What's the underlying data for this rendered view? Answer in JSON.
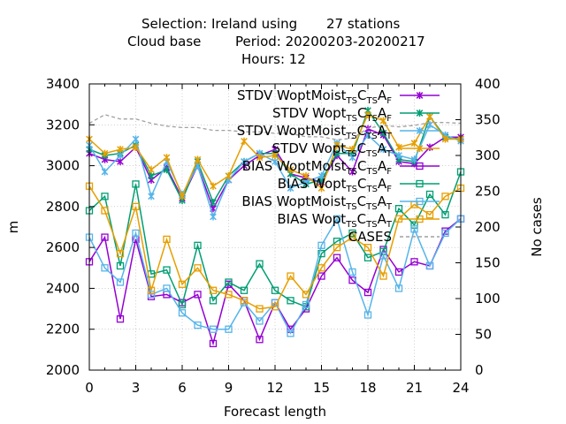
{
  "chart_data": {
    "type": "line",
    "title": {
      "line1_a": "Selection: Ireland using",
      "line1_b": "27 stations",
      "line2_a": "Cloud base",
      "line2_b": "Period: 20200203-20200217",
      "line3": "Hours:  12"
    },
    "xlabel": "Forecast length",
    "ylabel": "m",
    "y2label": "No cases",
    "xlim": [
      0,
      24
    ],
    "ylim": [
      2000,
      3400
    ],
    "y2lim": [
      0,
      400
    ],
    "xticks": [
      "0",
      "3",
      "6",
      "9",
      "12",
      "15",
      "18",
      "21",
      "24"
    ],
    "yticks": [
      "2000",
      "2200",
      "2400",
      "2600",
      "2800",
      "3000",
      "3200",
      "3400"
    ],
    "y2ticks": [
      "0",
      "50",
      "100",
      "150",
      "200",
      "250",
      "300",
      "350",
      "400"
    ],
    "grid": true,
    "legend_position": "top-right",
    "x": [
      0,
      1,
      2,
      3,
      4,
      5,
      6,
      7,
      8,
      9,
      10,
      11,
      12,
      13,
      14,
      15,
      16,
      17,
      18,
      19,
      20,
      21,
      22,
      23,
      24
    ],
    "series": [
      {
        "name_parts": [
          [
            "STDV WoptMoist",
            ""
          ],
          [
            "TS",
            "sub"
          ],
          [
            "C",
            ""
          ],
          [
            "TS",
            "sub"
          ],
          [
            "A",
            ""
          ],
          [
            "F",
            "sub"
          ]
        ],
        "color": "#9400d3",
        "marker": "x-star",
        "dash": "",
        "axis": "y1",
        "values": [
          3060,
          3030,
          3020,
          3090,
          2930,
          2990,
          2840,
          3000,
          2790,
          2930,
          3000,
          3050,
          3080,
          2960,
          2940,
          2920,
          3050,
          2970,
          3180,
          3150,
          3020,
          3010,
          3090,
          3140,
          3140
        ]
      },
      {
        "name_parts": [
          [
            "STDV Wopt",
            ""
          ],
          [
            "TS",
            "sub"
          ],
          [
            "C",
            ""
          ],
          [
            "TS",
            "sub"
          ],
          [
            "A",
            ""
          ],
          [
            "F",
            "sub"
          ]
        ],
        "color": "#009e73",
        "marker": "x-star",
        "dash": "",
        "axis": "y1",
        "values": [
          3080,
          3050,
          3060,
          3100,
          2950,
          2980,
          2830,
          3020,
          2820,
          2950,
          3020,
          3060,
          3060,
          2960,
          2910,
          2930,
          3060,
          3060,
          3270,
          3160,
          3030,
          3020,
          3240,
          3140,
          3130
        ]
      },
      {
        "name_parts": [
          [
            "STDV WoptMoist",
            ""
          ],
          [
            "TS",
            "sub"
          ],
          [
            "C",
            ""
          ],
          [
            "TS",
            "sub"
          ],
          [
            "A",
            ""
          ],
          [
            "T",
            "sub"
          ]
        ],
        "color": "#56b4e9",
        "marker": "x-star",
        "dash": "",
        "axis": "y1",
        "values": [
          3100,
          2970,
          3050,
          3130,
          2850,
          3020,
          2860,
          3000,
          2750,
          2930,
          3020,
          3060,
          3020,
          2890,
          2920,
          2950,
          3110,
          3040,
          3150,
          3080,
          3050,
          3030,
          3200,
          3150,
          3120
        ]
      },
      {
        "name_parts": [
          [
            "STDV Wopt",
            ""
          ],
          [
            "TS",
            "sub"
          ],
          [
            "C",
            ""
          ],
          [
            "TS",
            "sub"
          ],
          [
            "A",
            ""
          ],
          [
            "T",
            "sub"
          ]
        ],
        "color": "#e69f00",
        "marker": "x-star",
        "dash": "",
        "axis": "y1",
        "values": [
          3130,
          3060,
          3080,
          3090,
          2980,
          3040,
          2850,
          3030,
          2900,
          2950,
          3120,
          3040,
          3050,
          2980,
          2950,
          2890,
          3100,
          3080,
          3250,
          3220,
          3090,
          3110,
          3240,
          3130,
          3130
        ]
      },
      {
        "name_parts": [
          [
            "BIAS WoptMoist",
            ""
          ],
          [
            "TS",
            "sub"
          ],
          [
            "C",
            ""
          ],
          [
            "TS",
            "sub"
          ],
          [
            "A",
            ""
          ],
          [
            "F",
            "sub"
          ]
        ],
        "color": "#9400d3",
        "marker": "square",
        "dash": "",
        "axis": "y1",
        "values": [
          2530,
          2650,
          2250,
          2640,
          2360,
          2370,
          2330,
          2370,
          2130,
          2420,
          2340,
          2150,
          2330,
          2200,
          2300,
          2460,
          2550,
          2440,
          2380,
          2590,
          2480,
          2530,
          2510,
          2680,
          2740
        ]
      },
      {
        "name_parts": [
          [
            "BIAS Wopt",
            ""
          ],
          [
            "TS",
            "sub"
          ],
          [
            "C",
            ""
          ],
          [
            "TS",
            "sub"
          ],
          [
            "A",
            ""
          ],
          [
            "F",
            "sub"
          ]
        ],
        "color": "#009e73",
        "marker": "square",
        "dash": "",
        "axis": "y1",
        "values": [
          2780,
          2850,
          2510,
          2910,
          2470,
          2490,
          2320,
          2610,
          2340,
          2430,
          2390,
          2520,
          2390,
          2340,
          2310,
          2570,
          2630,
          2670,
          2550,
          2580,
          2790,
          2710,
          2860,
          2760,
          2970
        ]
      },
      {
        "name_parts": [
          [
            "BIAS WoptMoist",
            ""
          ],
          [
            "TS",
            "sub"
          ],
          [
            "C",
            ""
          ],
          [
            "TS",
            "sub"
          ],
          [
            "A",
            ""
          ],
          [
            "T",
            "sub"
          ]
        ],
        "color": "#56b4e9",
        "marker": "square",
        "dash": "",
        "axis": "y1",
        "values": [
          2650,
          2500,
          2430,
          2670,
          2370,
          2400,
          2280,
          2220,
          2200,
          2200,
          2330,
          2240,
          2330,
          2180,
          2320,
          2610,
          2740,
          2480,
          2270,
          2560,
          2400,
          2690,
          2510,
          2670,
          2740
        ]
      },
      {
        "name_parts": [
          [
            "BIAS Wopt",
            ""
          ],
          [
            "TS",
            "sub"
          ],
          [
            "C",
            ""
          ],
          [
            "TS",
            "sub"
          ],
          [
            "A",
            ""
          ],
          [
            "T",
            "sub"
          ]
        ],
        "color": "#e69f00",
        "marker": "square",
        "dash": "",
        "axis": "y1",
        "values": [
          2900,
          2780,
          2570,
          2800,
          2390,
          2640,
          2420,
          2500,
          2390,
          2370,
          2340,
          2300,
          2310,
          2460,
          2370,
          2500,
          2600,
          2650,
          2600,
          2460,
          2740,
          2810,
          2760,
          2850,
          2890
        ]
      },
      {
        "name_parts": [
          [
            "CASES",
            ""
          ]
        ],
        "color": "#a0a0a0",
        "marker": "none",
        "dash": "4,3",
        "axis": "y2",
        "values": [
          345,
          357,
          351,
          351,
          345,
          341,
          339,
          339,
          335,
          335,
          333,
          333,
          331,
          331,
          326,
          326,
          322,
          324,
          338,
          342,
          340,
          342,
          346,
          346,
          345
        ]
      }
    ]
  }
}
